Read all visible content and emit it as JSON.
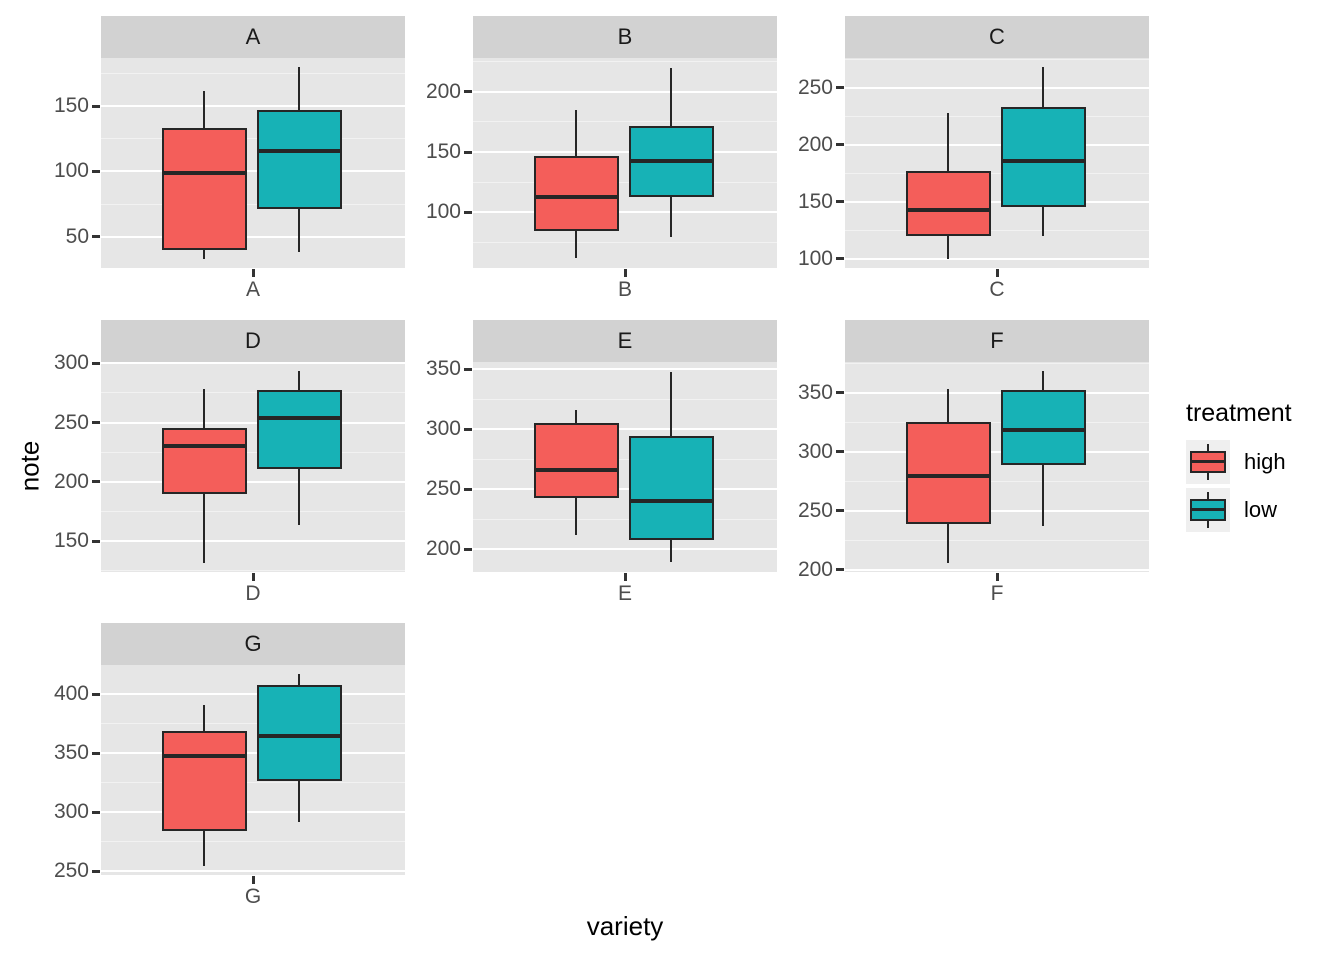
{
  "axis": {
    "x_label": "variety",
    "y_label": "note"
  },
  "legend": {
    "title": "treatment",
    "items": [
      {
        "label": "high",
        "color": "#F45E5A"
      },
      {
        "label": "low",
        "color": "#17B2B6"
      }
    ]
  },
  "colors": {
    "high": "#F45E5A",
    "low": "#17B2B6",
    "panel_background": "#E6E6E6",
    "strip_background": "#D2D2D2",
    "grid_major": "#FFFFFF",
    "grid_minor": "#F2F2F2",
    "box_outline": "#262626",
    "tick_text": "#4D4D4D"
  },
  "chart_data": {
    "type": "boxplot",
    "title": "",
    "xlabel": "variety",
    "ylabel": "note",
    "facet_variable": "variety",
    "series_variable": "treatment",
    "series": [
      "high",
      "low"
    ],
    "grid": true,
    "legend_position": "right",
    "facets": [
      {
        "label": "A",
        "row": 0,
        "col": 0,
        "y_ticks": [
          50,
          100,
          150
        ],
        "ylim": [
          26,
          187
        ],
        "boxes": [
          {
            "series": "high",
            "whisker_low": 33,
            "q1": 40,
            "median": 99,
            "q3": 133,
            "whisker_high": 162
          },
          {
            "series": "low",
            "whisker_low": 38,
            "q1": 71,
            "median": 116,
            "q3": 147,
            "whisker_high": 180
          }
        ]
      },
      {
        "label": "B",
        "row": 0,
        "col": 1,
        "y_ticks": [
          100,
          150,
          200
        ],
        "ylim": [
          54,
          228
        ],
        "boxes": [
          {
            "series": "high",
            "whisker_low": 62,
            "q1": 85,
            "median": 113,
            "q3": 147,
            "whisker_high": 185
          },
          {
            "series": "low",
            "whisker_low": 80,
            "q1": 113,
            "median": 143,
            "q3": 172,
            "whisker_high": 220
          }
        ]
      },
      {
        "label": "C",
        "row": 0,
        "col": 2,
        "y_ticks": [
          100,
          150,
          200,
          250
        ],
        "ylim": [
          92,
          276
        ],
        "boxes": [
          {
            "series": "high",
            "whisker_low": 100,
            "q1": 120,
            "median": 143,
            "q3": 177,
            "whisker_high": 228
          },
          {
            "series": "low",
            "whisker_low": 120,
            "q1": 145,
            "median": 186,
            "q3": 233,
            "whisker_high": 268
          }
        ]
      },
      {
        "label": "D",
        "row": 1,
        "col": 0,
        "y_ticks": [
          150,
          200,
          250,
          300
        ],
        "ylim": [
          124,
          301
        ],
        "boxes": [
          {
            "series": "high",
            "whisker_low": 132,
            "q1": 190,
            "median": 230,
            "q3": 245,
            "whisker_high": 278
          },
          {
            "series": "low",
            "whisker_low": 164,
            "q1": 211,
            "median": 254,
            "q3": 277,
            "whisker_high": 293
          }
        ]
      },
      {
        "label": "E",
        "row": 1,
        "col": 1,
        "y_ticks": [
          200,
          250,
          300,
          350
        ],
        "ylim": [
          181,
          356
        ],
        "boxes": [
          {
            "series": "high",
            "whisker_low": 212,
            "q1": 243,
            "median": 266,
            "q3": 305,
            "whisker_high": 316
          },
          {
            "series": "low",
            "whisker_low": 189,
            "q1": 208,
            "median": 240,
            "q3": 294,
            "whisker_high": 348
          }
        ]
      },
      {
        "label": "F",
        "row": 1,
        "col": 2,
        "y_ticks": [
          200,
          250,
          300,
          350
        ],
        "ylim": [
          198,
          376
        ],
        "boxes": [
          {
            "series": "high",
            "whisker_low": 206,
            "q1": 239,
            "median": 279,
            "q3": 325,
            "whisker_high": 353
          },
          {
            "series": "low",
            "whisker_low": 237,
            "q1": 289,
            "median": 318,
            "q3": 352,
            "whisker_high": 368
          }
        ]
      },
      {
        "label": "G",
        "row": 2,
        "col": 0,
        "y_ticks": [
          250,
          300,
          350,
          400
        ],
        "ylim": [
          247,
          425
        ],
        "boxes": [
          {
            "series": "high",
            "whisker_low": 255,
            "q1": 284,
            "median": 348,
            "q3": 369,
            "whisker_high": 391
          },
          {
            "series": "low",
            "whisker_low": 292,
            "q1": 327,
            "median": 365,
            "q3": 408,
            "whisker_high": 417
          }
        ]
      }
    ]
  }
}
